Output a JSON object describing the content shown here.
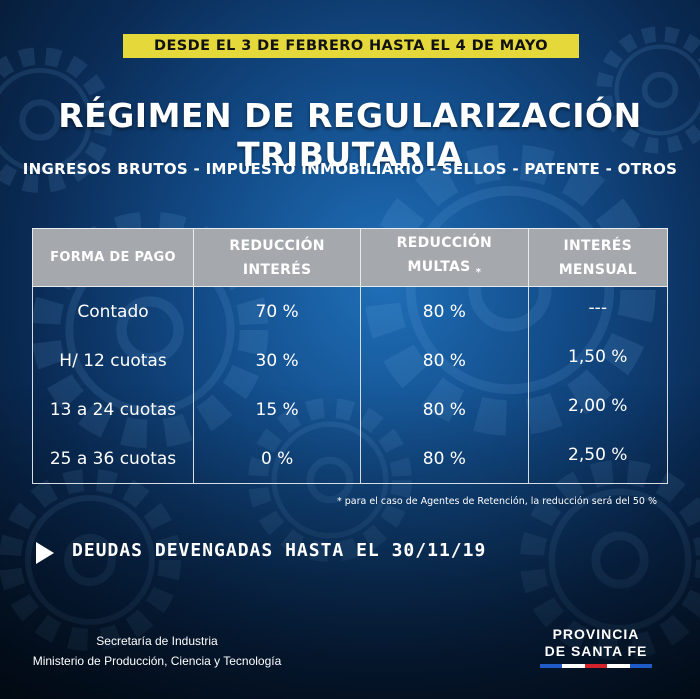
{
  "banner": "DESDE EL 3 DE FEBRERO HASTA EL 4 DE MAYO",
  "title": "RÉGIMEN DE REGULARIZACIÓN TRIBUTARIA",
  "subtitle": "INGRESOS BRUTOS - IMPUESTO INMOBILIARIO - SELLOS - PATENTE - OTROS",
  "table": {
    "headers": [
      {
        "line1": "FORMA DE PAGO",
        "line2": ""
      },
      {
        "line1": "REDUCCIÓN",
        "line2": "INTERÉS"
      },
      {
        "line1": "REDUCCIÓN",
        "line2": "MULTAS",
        "mark": "*"
      },
      {
        "line1": "INTERÉS",
        "line2": "MENSUAL"
      }
    ],
    "rows": [
      [
        "Contado",
        "70 %",
        "80 %",
        "---"
      ],
      [
        "H/ 12 cuotas",
        "30 %",
        "80 %",
        "1,50 %"
      ],
      [
        "13 a 24 cuotas",
        "15 %",
        "80 %",
        "2,00 %"
      ],
      [
        "25 a 36 cuotas",
        "0 %",
        "80 %",
        "2,50 %"
      ]
    ]
  },
  "footnote": "* para el caso de Agentes de Retención, la reducción será del 50 %",
  "deudas": "DEUDAS DEVENGADAS HASTA EL 30/11/19",
  "secretaria": "Secretaría de Industria",
  "ministerio": "Ministerio de Producción, Ciencia y Tecnología",
  "logo": {
    "line1": "PROVINCIA",
    "line2": "DE SANTA FE"
  },
  "colors": {
    "banner": "#e4d83b",
    "header_bg": "#a5a9ae",
    "flag": [
      "#1e5bc6",
      "#ffffff",
      "#d5232b",
      "#ffffff",
      "#1e5bc6"
    ]
  },
  "icons": [
    "gear-icon",
    "play-triangle-icon"
  ]
}
